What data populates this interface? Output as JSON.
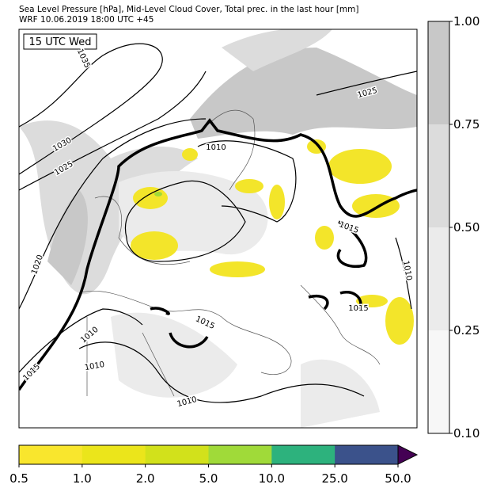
{
  "header": {
    "title": "Sea Level Pressure [hPa], Mid-Level Cloud Cover, Total prec. in the last hour [mm]",
    "subtitle": "WRF 10.06.2019 18:00 UTC +45"
  },
  "map": {
    "time_label": "15 UTC Wed",
    "isobar_labels": [
      "1035",
      "1030",
      "1025",
      "1025",
      "1020",
      "1015",
      "1010",
      "1010",
      "1010",
      "1010",
      "1015",
      "1015",
      "1015",
      "1010"
    ]
  },
  "cloud_colorbar": {
    "colors": [
      "#f7f7f7",
      "#ebebeb",
      "#dcdcdc",
      "#c8c8c8"
    ],
    "ticks": [
      {
        "value": 0.1,
        "label": "0.10"
      },
      {
        "value": 0.25,
        "label": "0.25"
      },
      {
        "value": 0.5,
        "label": "0.50"
      },
      {
        "value": 0.75,
        "label": "0.75"
      },
      {
        "value": 1,
        "label": "1.00"
      }
    ]
  },
  "precip_colorbar": {
    "colors": [
      "#f9e62d",
      "#ebe51b",
      "#d2e11b",
      "#a0da39",
      "#2db27d",
      "#3b528b"
    ],
    "extend_color": "#440154",
    "ticks": [
      {
        "value": 0.5,
        "label": "0.5"
      },
      {
        "value": 1,
        "label": "1.0"
      },
      {
        "value": 2,
        "label": "2.0"
      },
      {
        "value": 5,
        "label": "5.0"
      },
      {
        "value": 10,
        "label": "10.0"
      },
      {
        "value": 25,
        "label": "25.0"
      },
      {
        "value": 50,
        "label": "50.0"
      }
    ]
  }
}
